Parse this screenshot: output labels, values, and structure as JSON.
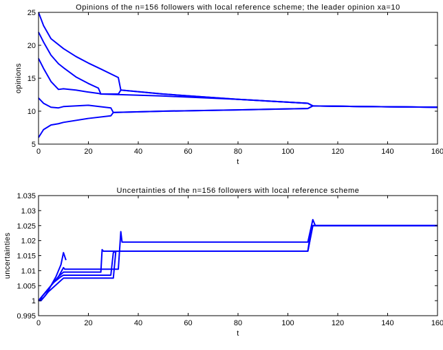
{
  "colors": {
    "series": "#0000ff",
    "axes": "#000000",
    "background": "#ffffff"
  },
  "chart_data": [
    {
      "type": "line",
      "title": "Opinions of the n=156 followers with local reference scheme; the leader opinion xa=10",
      "xlabel": "t",
      "ylabel": "opinions",
      "xlim": [
        0,
        160
      ],
      "ylim": [
        5,
        25
      ],
      "grid": false,
      "xticks": [
        0,
        20,
        40,
        60,
        80,
        100,
        120,
        140,
        160
      ],
      "yticks": [
        5,
        10,
        15,
        20,
        25
      ],
      "ytick_labels": [
        "5",
        "10",
        "15",
        "20",
        "25"
      ],
      "series": [
        {
          "x": [
            0,
            2,
            5,
            10,
            15,
            20,
            25,
            32,
            33,
            50,
            80,
            108,
            110,
            130,
            160
          ],
          "y": [
            25,
            23,
            21,
            19.5,
            18.3,
            17.3,
            16.4,
            15.1,
            13.2,
            12.6,
            11.8,
            11.2,
            10.8,
            10.7,
            10.6
          ]
        },
        {
          "x": [
            0,
            2,
            5,
            8,
            10,
            15,
            20,
            24,
            25,
            32,
            33,
            50,
            80,
            108,
            110,
            130,
            160
          ],
          "y": [
            22,
            20.5,
            18.5,
            17.2,
            16.6,
            15.2,
            14.2,
            13.5,
            12.6,
            12.6,
            13.2,
            12.6,
            11.8,
            11.2,
            10.8,
            10.7,
            10.6
          ]
        },
        {
          "x": [
            0,
            2,
            5,
            8,
            10,
            15,
            20,
            24,
            25,
            50,
            80,
            108,
            110,
            130,
            160
          ],
          "y": [
            18,
            16.5,
            14.5,
            13.3,
            13.4,
            13.2,
            12.9,
            12.7,
            12.6,
            12.3,
            11.8,
            11.2,
            10.8,
            10.7,
            10.6
          ]
        },
        {
          "x": [
            0,
            2,
            5,
            8,
            10,
            20,
            29,
            30,
            50,
            80,
            108,
            110,
            130,
            160
          ],
          "y": [
            12,
            11.2,
            10.6,
            10.5,
            10.7,
            10.9,
            10.5,
            9.8,
            10.0,
            10.2,
            10.4,
            10.8,
            10.7,
            10.6
          ]
        },
        {
          "x": [
            0,
            2,
            5,
            8,
            10,
            20,
            29,
            30,
            50,
            80,
            108,
            110,
            130,
            160
          ],
          "y": [
            6,
            7.2,
            7.9,
            8.1,
            8.3,
            8.9,
            9.3,
            9.8,
            10.0,
            10.2,
            10.4,
            10.8,
            10.7,
            10.6
          ]
        }
      ]
    },
    {
      "type": "line",
      "title": "Uncertainties of the n=156 followers with local reference scheme",
      "xlabel": "t",
      "ylabel": "uncertainties",
      "xlim": [
        0,
        160
      ],
      "ylim": [
        0.995,
        1.035
      ],
      "grid": false,
      "xticks": [
        0,
        20,
        40,
        60,
        80,
        100,
        120,
        140,
        160
      ],
      "yticks": [
        0.995,
        1,
        1.005,
        1.01,
        1.015,
        1.02,
        1.025,
        1.03,
        1.035
      ],
      "ytick_labels": [
        "0.995",
        "1",
        "1.005",
        "1.01",
        "1.015",
        "1.02",
        "1.025",
        "1.03",
        "1.035"
      ],
      "series": [
        {
          "x": [
            0,
            2,
            4,
            6,
            8,
            10,
            10.5,
            25,
            26,
            32,
            33,
            33.5,
            34,
            108,
            110,
            111,
            160
          ],
          "y": [
            1.0,
            1.002,
            1.004,
            1.006,
            1.008,
            1.011,
            1.0105,
            1.0105,
            1.0105,
            1.0105,
            1.023,
            1.0195,
            1.0195,
            1.0195,
            1.027,
            1.025,
            1.025
          ]
        },
        {
          "x": [
            0,
            2,
            4,
            6,
            8,
            10,
            25,
            25.5,
            26,
            32,
            33,
            50,
            108,
            109.5,
            110,
            160
          ],
          "y": [
            1.0,
            1.002,
            1.004,
            1.006,
            1.008,
            1.0095,
            1.0095,
            1.017,
            1.0165,
            1.0165,
            1.0165,
            1.0165,
            1.0165,
            1.025,
            1.025,
            1.025
          ]
        },
        {
          "x": [
            0,
            3,
            6,
            9,
            10,
            29,
            30,
            31,
            50,
            108,
            110,
            160
          ],
          "y": [
            1.0,
            1.003,
            1.006,
            1.008,
            1.0085,
            1.0085,
            1.016,
            1.0165,
            1.0165,
            1.0165,
            1.025,
            1.025
          ]
        },
        {
          "x": [
            0,
            2,
            4,
            8,
            10,
            30,
            31,
            32,
            50,
            108,
            110,
            160
          ],
          "y": [
            1.0,
            1.001,
            1.003,
            1.006,
            1.0075,
            1.0075,
            1.0165,
            1.0165,
            1.0165,
            1.0165,
            1.025,
            1.025
          ]
        },
        {
          "x": [
            0,
            1,
            3,
            5,
            7,
            9,
            10,
            11
          ],
          "y": [
            1.0,
            1.0,
            1.002,
            1.005,
            1.008,
            1.012,
            1.016,
            1.0135
          ]
        }
      ]
    }
  ]
}
